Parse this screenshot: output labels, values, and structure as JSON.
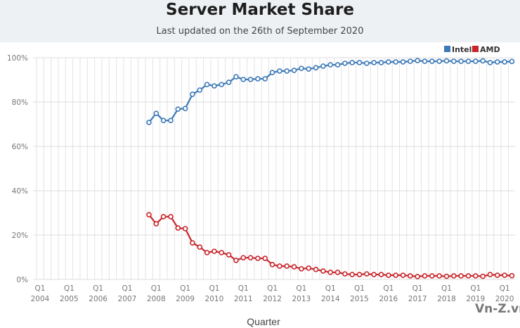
{
  "header": {
    "title": "Server Market Share",
    "subtitle": "Last updated on the 26th of September 2020"
  },
  "watermark": "Vn-Z.vn",
  "chart_data": {
    "type": "line",
    "title": "Server Market Share",
    "subtitle": "Last updated on the 26th of September 2020",
    "xlabel": "Quarter",
    "ylabel": "",
    "ylim": [
      0,
      100
    ],
    "yticks": [
      "0%",
      "20%",
      "40%",
      "60%",
      "80%",
      "100%"
    ],
    "ytick_values": [
      0,
      20,
      40,
      60,
      80,
      100
    ],
    "x_range_quarters": {
      "start": "Q1 2004",
      "end": "Q2 2020"
    },
    "xticks": [
      {
        "q": "Q1",
        "year": "2004"
      },
      {
        "q": "Q1",
        "year": "2005"
      },
      {
        "q": "Q1",
        "year": "2006"
      },
      {
        "q": "Q1",
        "year": "2007"
      },
      {
        "q": "Q1",
        "year": "2008"
      },
      {
        "q": "Q1",
        "year": "2009"
      },
      {
        "q": "Q1",
        "year": "2010"
      },
      {
        "q": "Q1",
        "year": "2011"
      },
      {
        "q": "Q1",
        "year": "2012"
      },
      {
        "q": "Q1",
        "year": "2013"
      },
      {
        "q": "Q1",
        "year": "2014"
      },
      {
        "q": "Q1",
        "year": "2015"
      },
      {
        "q": "Q1",
        "year": "2016"
      },
      {
        "q": "Q1",
        "year": "2017"
      },
      {
        "q": "Q1",
        "year": "2018"
      },
      {
        "q": "Q1",
        "year": "2019"
      },
      {
        "q": "Q1",
        "year": "2020"
      }
    ],
    "grid": true,
    "legend": {
      "placement": "top-right",
      "entries": [
        "Intel",
        "AMD"
      ]
    },
    "series_start_quarter": "Q4 2007",
    "series": [
      {
        "name": "Intel",
        "color": "#3d7ab8",
        "values": [
          70.8,
          74.9,
          71.7,
          71.7,
          76.8,
          77.1,
          83.5,
          85.4,
          87.9,
          87.3,
          87.9,
          88.9,
          91.4,
          90.2,
          90.2,
          90.5,
          90.5,
          93.3,
          94.0,
          94.0,
          94.3,
          95.2,
          94.9,
          95.5,
          96.2,
          96.8,
          96.8,
          97.5,
          97.8,
          97.8,
          97.5,
          97.8,
          97.8,
          98.1,
          98.1,
          98.1,
          98.4,
          98.7,
          98.4,
          98.4,
          98.4,
          98.6,
          98.4,
          98.4,
          98.4,
          98.4,
          98.6,
          97.8,
          98.1,
          98.1,
          98.3
        ]
      },
      {
        "name": "AMD",
        "color": "#c8262c",
        "values": [
          29.2,
          25.1,
          28.3,
          28.3,
          23.2,
          22.9,
          16.5,
          14.6,
          12.1,
          12.7,
          12.1,
          11.1,
          8.6,
          9.8,
          9.8,
          9.5,
          9.5,
          6.7,
          6.0,
          6.0,
          5.7,
          4.8,
          5.1,
          4.5,
          3.8,
          3.2,
          3.2,
          2.5,
          2.2,
          2.2,
          2.5,
          2.2,
          2.2,
          1.9,
          1.9,
          1.9,
          1.6,
          1.3,
          1.6,
          1.6,
          1.6,
          1.4,
          1.6,
          1.6,
          1.6,
          1.6,
          1.4,
          2.2,
          1.9,
          1.9,
          1.7
        ]
      }
    ]
  }
}
